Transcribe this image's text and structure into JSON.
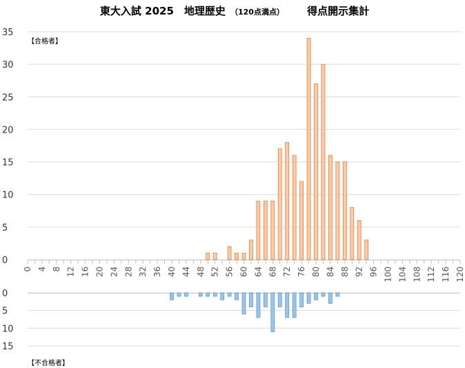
{
  "chart_data": {
    "type": "bar",
    "title_main": "東大入試 2025　地理歴史",
    "title_sub": "（120点満点）",
    "title_tail": "得点開示集計",
    "x_ticks": [
      0,
      4,
      8,
      12,
      16,
      20,
      24,
      28,
      32,
      36,
      40,
      44,
      48,
      52,
      56,
      60,
      64,
      68,
      72,
      76,
      80,
      84,
      88,
      92,
      96,
      100,
      104,
      108,
      112,
      116,
      120
    ],
    "panels": [
      {
        "name": "【合格者】",
        "ylim": [
          0,
          35
        ],
        "yticks": [
          0,
          5,
          10,
          15,
          20,
          25,
          30,
          35
        ],
        "color": "#F8CBAD",
        "stroke": "#ED7D31",
        "x": [
          50,
          52,
          56,
          58,
          60,
          62,
          64,
          66,
          68,
          70,
          72,
          74,
          76,
          78,
          80,
          82,
          84,
          86,
          88,
          90,
          92,
          94
        ],
        "values": [
          1,
          1,
          2,
          1,
          1,
          3,
          9,
          9,
          9,
          17,
          18,
          16,
          12,
          34,
          27,
          30,
          16,
          15,
          15,
          8,
          6,
          3
        ]
      },
      {
        "name": "【不合格者】",
        "ylim": [
          0,
          15
        ],
        "yticks": [
          0,
          5,
          10,
          15
        ],
        "color": "#9DC3E6",
        "stroke": "#5B9BD5",
        "x": [
          40,
          42,
          44,
          48,
          50,
          52,
          54,
          56,
          58,
          60,
          62,
          64,
          66,
          68,
          70,
          72,
          74,
          76,
          78,
          80,
          82,
          84,
          86
        ],
        "values": [
          2,
          1,
          1,
          1,
          1,
          1,
          2,
          1,
          2,
          6,
          4,
          7,
          4,
          11,
          4,
          7,
          7,
          4,
          3,
          2,
          1,
          3,
          1
        ]
      }
    ]
  }
}
